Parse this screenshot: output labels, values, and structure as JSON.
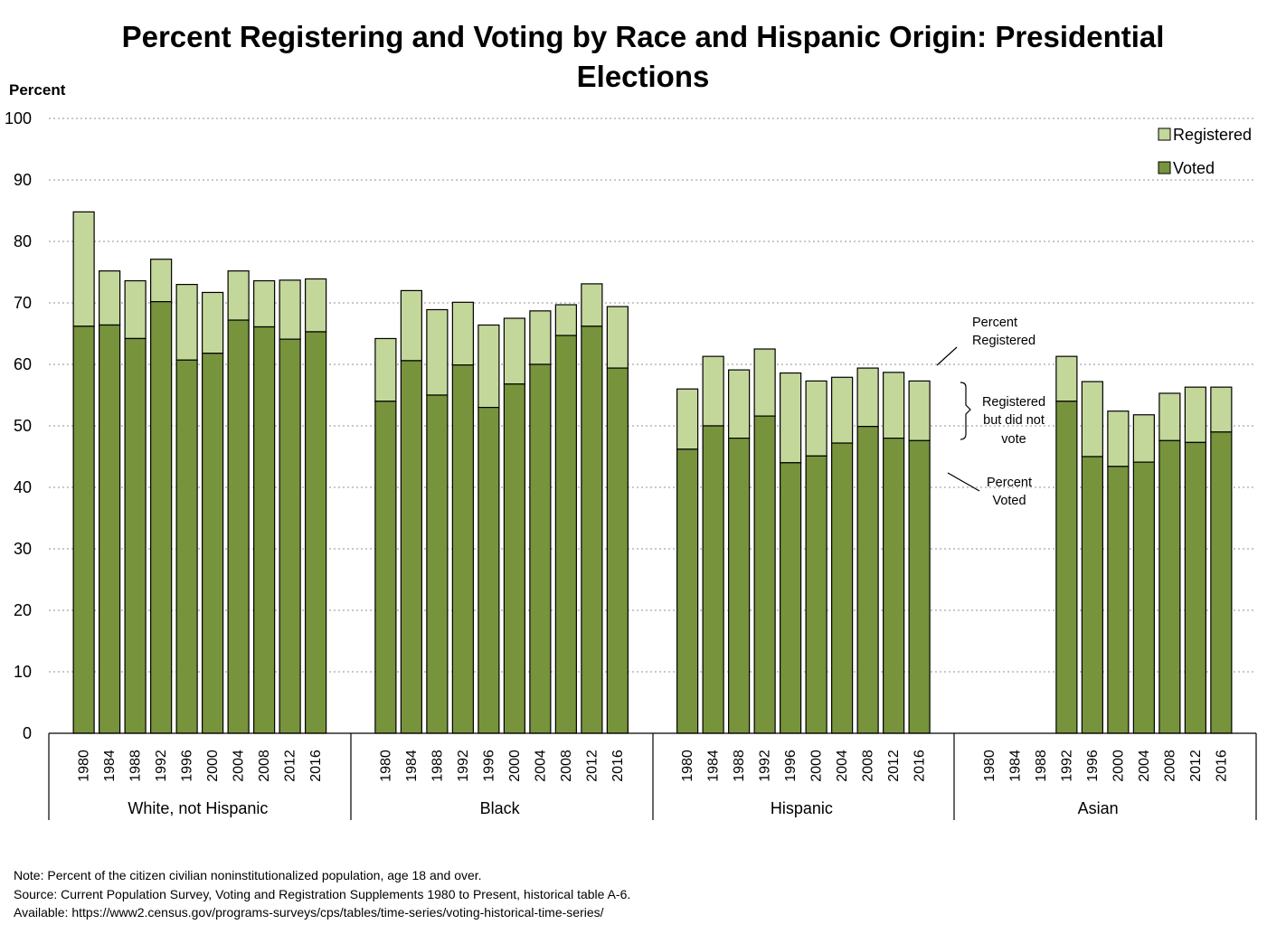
{
  "chart_data": {
    "type": "bar",
    "stacked": true,
    "title": "Percent Registering and Voting by Race and Hispanic Origin: Presidential Elections",
    "title_lines": [
      "Percent Registering and Voting by Race and Hispanic Origin: Presidential",
      "Elections"
    ],
    "ylabel": "Percent",
    "ylim": [
      0,
      100
    ],
    "yticks": [
      0,
      10,
      20,
      30,
      40,
      50,
      60,
      70,
      80,
      90,
      100
    ],
    "grid": true,
    "legend_position": "top-right",
    "legend": [
      {
        "name": "Registered",
        "color": "#c4d79b"
      },
      {
        "name": "Voted",
        "color": "#77933c"
      }
    ],
    "groups": [
      {
        "name": "White, not Hispanic",
        "years": [
          "1980",
          "1984",
          "1988",
          "1992",
          "1996",
          "2000",
          "2004",
          "2008",
          "2012",
          "2016"
        ],
        "registered": [
          84.8,
          75.2,
          73.6,
          77.1,
          73.0,
          71.7,
          75.2,
          73.6,
          73.7,
          73.9
        ],
        "voted": [
          66.2,
          66.4,
          64.2,
          70.2,
          60.7,
          61.8,
          67.2,
          66.1,
          64.1,
          65.3
        ]
      },
      {
        "name": "Black",
        "years": [
          "1980",
          "1984",
          "1988",
          "1992",
          "1996",
          "2000",
          "2004",
          "2008",
          "2012",
          "2016"
        ],
        "registered": [
          64.2,
          72.0,
          68.9,
          70.1,
          66.4,
          67.5,
          68.7,
          69.7,
          73.1,
          69.4
        ],
        "voted": [
          54.0,
          60.6,
          55.0,
          59.9,
          53.0,
          56.8,
          60.0,
          64.7,
          66.2,
          59.4
        ]
      },
      {
        "name": "Hispanic",
        "years": [
          "1980",
          "1984",
          "1988",
          "1992",
          "1996",
          "2000",
          "2004",
          "2008",
          "2012",
          "2016"
        ],
        "registered": [
          56.0,
          61.3,
          59.1,
          62.5,
          58.6,
          57.3,
          57.9,
          59.4,
          58.7,
          57.3
        ],
        "voted": [
          46.2,
          50.0,
          48.0,
          51.6,
          44.0,
          45.1,
          47.2,
          49.9,
          48.0,
          47.6
        ]
      },
      {
        "name": "Asian",
        "years": [
          "1980",
          "1984",
          "1988",
          "1992",
          "1996",
          "2000",
          "2004",
          "2008",
          "2012",
          "2016"
        ],
        "registered": [
          null,
          null,
          null,
          61.3,
          57.2,
          52.4,
          51.8,
          55.3,
          56.3,
          56.3
        ],
        "voted": [
          null,
          null,
          null,
          54.0,
          45.0,
          43.4,
          44.1,
          47.6,
          47.3,
          49.0
        ]
      }
    ],
    "annotations": {
      "percent_registered": [
        "Percent",
        "Registered"
      ],
      "registered_not_voted": [
        "Registered",
        "but did not",
        "vote"
      ],
      "percent_voted": [
        "Percent",
        "Voted"
      ]
    }
  },
  "notes": [
    "Note: Percent of the citizen civilian noninstitutionalized population, age 18 and over.",
    "Source: Current Population Survey, Voting and  Registration Supplements 1980 to Present, historical table A-6.",
    "Available: https://www2.census.gov/programs-surveys/cps/tables/time-series/voting-historical-time-series/"
  ]
}
